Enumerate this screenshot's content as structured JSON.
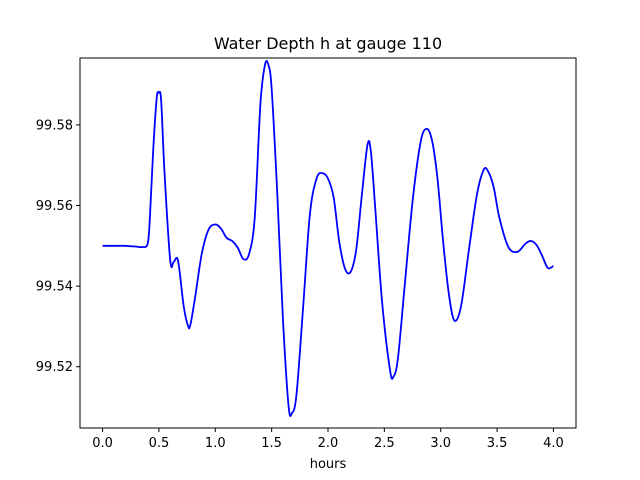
{
  "chart_data": {
    "type": "line",
    "title": "Water Depth h at gauge 110",
    "xlabel": "hours",
    "ylabel": "",
    "xlim": [
      -0.2,
      4.2
    ],
    "ylim": [
      99.5048,
      99.5966
    ],
    "xticks": [
      0.0,
      0.5,
      1.0,
      1.5,
      2.0,
      2.5,
      3.0,
      3.5,
      4.0
    ],
    "xtick_labels": [
      "0.0",
      "0.5",
      "1.0",
      "1.5",
      "2.0",
      "2.5",
      "3.0",
      "3.5",
      "4.0"
    ],
    "yticks": [
      99.52,
      99.54,
      99.56,
      99.58
    ],
    "ytick_labels": [
      "99.52",
      "99.54",
      "99.56",
      "99.58"
    ],
    "grid": false,
    "series": [
      {
        "color": "#0000ff",
        "x": [
          0.0,
          0.1,
          0.2,
          0.3,
          0.35,
          0.4,
          0.42,
          0.45,
          0.48,
          0.5,
          0.52,
          0.55,
          0.6,
          0.63,
          0.66,
          0.68,
          0.72,
          0.76,
          0.78,
          0.82,
          0.88,
          0.94,
          1.0,
          1.05,
          1.1,
          1.15,
          1.2,
          1.25,
          1.3,
          1.35,
          1.4,
          1.44,
          1.47,
          1.5,
          1.55,
          1.6,
          1.65,
          1.68,
          1.72,
          1.78,
          1.84,
          1.9,
          1.95,
          2.0,
          2.05,
          2.1,
          2.15,
          2.2,
          2.25,
          2.3,
          2.35,
          2.38,
          2.42,
          2.48,
          2.55,
          2.58,
          2.62,
          2.68,
          2.75,
          2.82,
          2.87,
          2.92,
          2.97,
          3.02,
          3.07,
          3.12,
          3.18,
          3.25,
          3.32,
          3.38,
          3.42,
          3.47,
          3.52,
          3.6,
          3.68,
          3.75,
          3.8,
          3.85,
          3.9,
          3.95,
          4.0
        ],
        "y": [
          99.55,
          99.55,
          99.55,
          99.5498,
          99.5497,
          99.5505,
          99.557,
          99.574,
          99.5865,
          99.588,
          99.586,
          99.568,
          99.5465,
          99.546,
          99.547,
          99.5445,
          99.535,
          99.53,
          99.5305,
          99.537,
          99.548,
          99.554,
          99.5553,
          99.5543,
          99.552,
          99.5512,
          99.5495,
          99.5467,
          99.548,
          99.557,
          99.585,
          99.5948,
          99.595,
          99.589,
          99.563,
          99.532,
          99.5103,
          99.5085,
          99.513,
          99.535,
          99.558,
          99.5668,
          99.568,
          99.5667,
          99.562,
          99.551,
          99.5444,
          99.5435,
          99.549,
          99.5625,
          99.575,
          99.5735,
          99.559,
          99.536,
          99.5192,
          99.5175,
          99.522,
          99.54,
          99.561,
          99.5755,
          99.579,
          99.5765,
          99.567,
          99.5515,
          99.5385,
          99.5315,
          99.535,
          99.549,
          99.5625,
          99.5688,
          99.5685,
          99.5645,
          99.557,
          99.5497,
          99.5485,
          99.5505,
          99.5512,
          99.5502,
          99.5475,
          99.5445,
          99.545
        ]
      }
    ]
  }
}
